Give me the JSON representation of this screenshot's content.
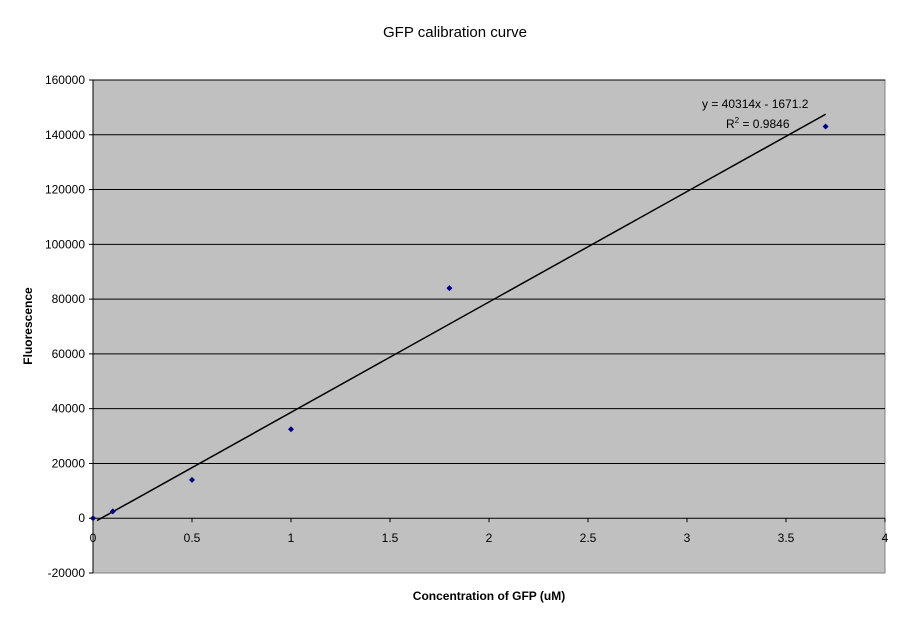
{
  "chart_data": {
    "type": "scatter",
    "title": "GFP calibration curve",
    "xlabel": "Concentration of GFP (uM)",
    "ylabel": "Fluorescence",
    "xlim": [
      0,
      4
    ],
    "ylim": [
      -20000,
      160000
    ],
    "x_ticks": [
      0,
      0.5,
      1,
      1.5,
      2,
      2.5,
      3,
      3.5,
      4
    ],
    "x_tick_labels": [
      "0",
      "0.5",
      "1",
      "1.5",
      "2",
      "2.5",
      "3",
      "3.5",
      "4"
    ],
    "y_ticks": [
      -20000,
      0,
      20000,
      40000,
      60000,
      80000,
      100000,
      120000,
      140000,
      160000
    ],
    "y_tick_labels": [
      "-20000",
      "0",
      "20000",
      "40000",
      "60000",
      "80000",
      "100000",
      "120000",
      "140000",
      "160000"
    ],
    "grid": "horizontal",
    "legend": "none",
    "series": [
      {
        "x": [
          0,
          0.1,
          0.5,
          1.0,
          1.8,
          3.7
        ],
        "y": [
          0,
          2500,
          14000,
          32500,
          84000,
          143000
        ]
      }
    ],
    "trendline": {
      "slope": 40314,
      "intercept": -1671.2,
      "x_range": [
        0.02,
        3.7
      ],
      "equation_label": "y = 40314x - 1671.2",
      "r2_prefix": "R",
      "r2_sup": "2",
      "r2_value": " = 0.9846"
    },
    "colors": {
      "plot_background": "#c0c0c0",
      "gridline": "#000000",
      "marker": "#000080",
      "trendline": "#000000"
    }
  }
}
